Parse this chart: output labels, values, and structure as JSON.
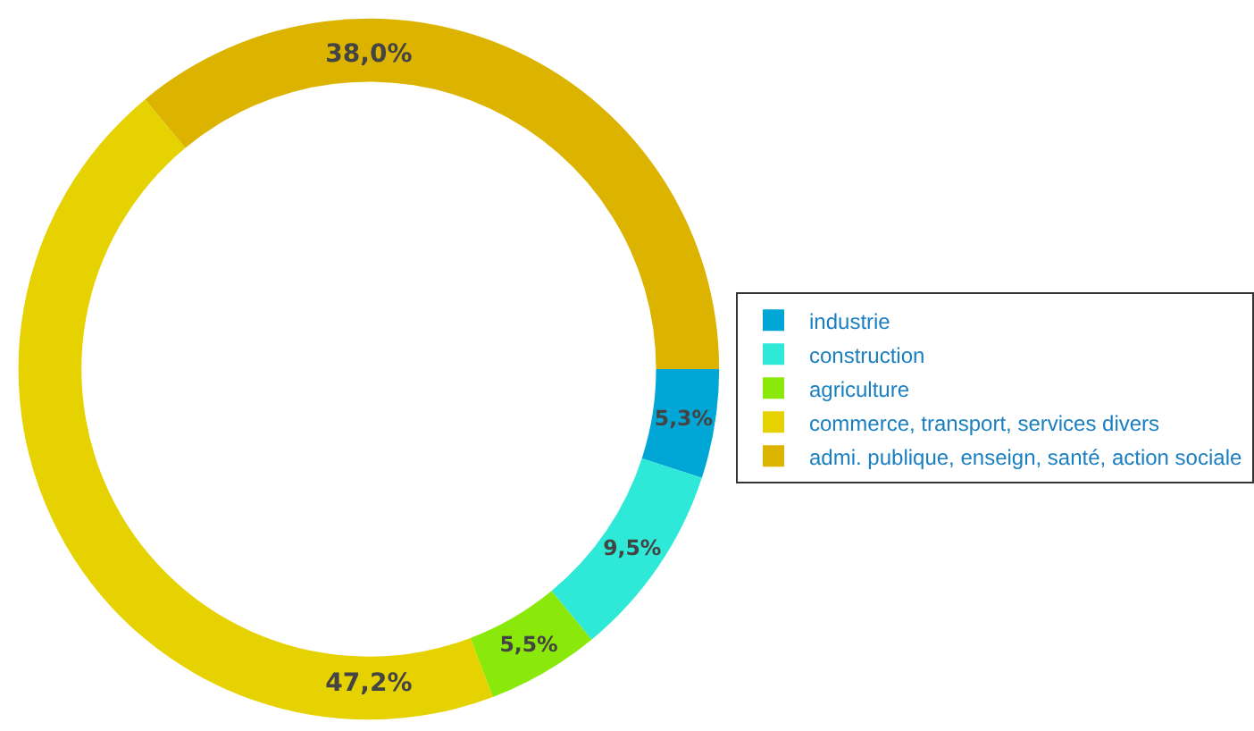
{
  "chart_data": {
    "type": "donut",
    "categories": [
      "industrie",
      "construction",
      "agriculture",
      "commerce, transport, services divers",
      "admi. publique, enseign, santé, action sociale"
    ],
    "values": [
      5.3,
      9.5,
      5.5,
      47.2,
      38.0
    ],
    "value_labels": [
      "5,3%",
      "9,5%",
      "5,5%",
      "47,2%",
      "38,0%"
    ],
    "colors": [
      "#00a6d6",
      "#2ee8d8",
      "#8ae80a",
      "#e6d200",
      "#dcb400"
    ],
    "legend": "right"
  }
}
